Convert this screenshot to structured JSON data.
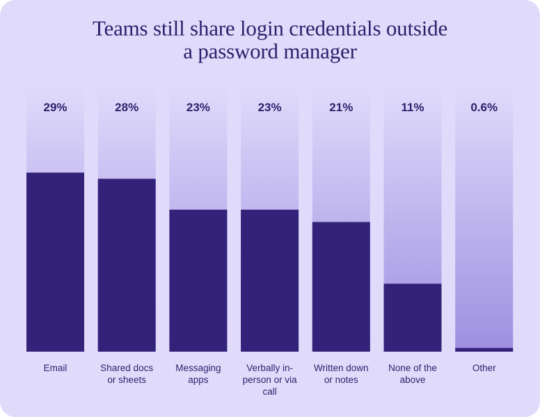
{
  "chart_data": {
    "type": "bar",
    "title_lines": [
      "Teams still share login credentials outside",
      "a password manager"
    ],
    "categories": [
      [
        "Email"
      ],
      [
        "Shared docs",
        "or sheets"
      ],
      [
        "Messaging",
        "apps"
      ],
      [
        "Verbally in-",
        "person or via",
        "call"
      ],
      [
        "Written down",
        "or notes"
      ],
      [
        "None of the",
        "above"
      ],
      [
        "Other"
      ]
    ],
    "values": [
      29,
      28,
      23,
      23,
      21,
      11,
      0.6
    ],
    "value_labels": [
      "29%",
      "28%",
      "23%",
      "23%",
      "21%",
      "11%",
      "0.6%"
    ],
    "ylim": [
      0,
      43
    ],
    "colors": {
      "background": "#e0dbfb",
      "bar": "#33217a",
      "track_top": "#e0dbfb",
      "track_bottom": "#9d8fe0",
      "text": "#2e1f6b"
    }
  }
}
